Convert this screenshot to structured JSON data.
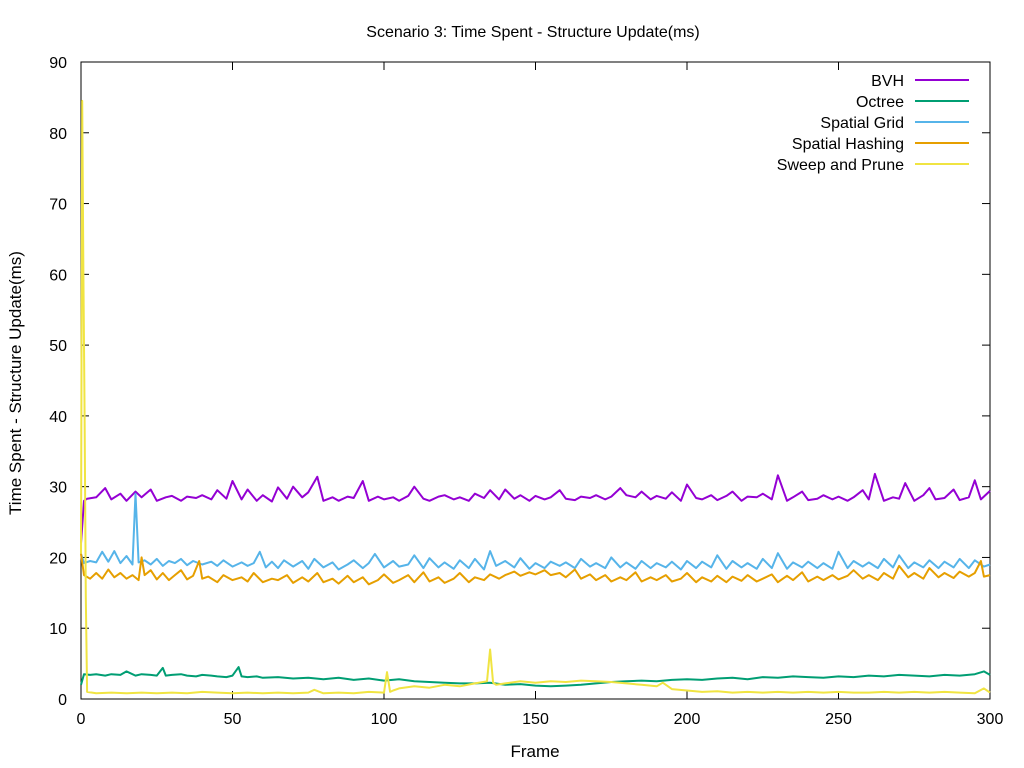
{
  "chart_data": {
    "type": "line",
    "title": "Scenario 3: Time Spent - Structure Update(ms)",
    "xlabel": "Frame",
    "ylabel": "Time Spent - Structure Update(ms)",
    "xlim": [
      0,
      300
    ],
    "ylim": [
      0,
      90
    ],
    "xticks": [
      0,
      50,
      100,
      150,
      200,
      250,
      300
    ],
    "yticks": [
      0,
      10,
      20,
      30,
      40,
      50,
      60,
      70,
      80,
      90
    ],
    "grid": false,
    "legend_position": "top-right",
    "series": [
      {
        "name": "BVH",
        "color": "#9400d3",
        "x": [
          0,
          1,
          2,
          5,
          8,
          10,
          13,
          15,
          18,
          20,
          23,
          25,
          28,
          30,
          33,
          35,
          38,
          40,
          43,
          45,
          48,
          50,
          53,
          55,
          58,
          60,
          63,
          65,
          68,
          70,
          73,
          75,
          78,
          80,
          83,
          85,
          88,
          90,
          93,
          95,
          98,
          100,
          103,
          105,
          108,
          110,
          113,
          115,
          118,
          120,
          123,
          125,
          128,
          130,
          133,
          135,
          138,
          140,
          143,
          145,
          148,
          150,
          153,
          155,
          158,
          160,
          163,
          165,
          168,
          170,
          173,
          175,
          178,
          180,
          183,
          185,
          188,
          190,
          193,
          195,
          198,
          200,
          203,
          205,
          208,
          210,
          213,
          215,
          218,
          220,
          223,
          225,
          228,
          230,
          233,
          235,
          238,
          240,
          243,
          245,
          248,
          250,
          253,
          255,
          258,
          260,
          262,
          265,
          268,
          270,
          272,
          275,
          278,
          280,
          282,
          285,
          288,
          290,
          293,
          295,
          297,
          300
        ],
        "y": [
          22.0,
          28.0,
          28.3,
          28.5,
          29.8,
          28.2,
          29.0,
          28.0,
          29.3,
          28.5,
          29.6,
          28.0,
          28.5,
          28.7,
          28.0,
          28.6,
          28.4,
          28.8,
          28.2,
          29.5,
          28.3,
          30.8,
          28.2,
          29.6,
          28.0,
          28.8,
          27.9,
          29.9,
          28.3,
          30.0,
          28.5,
          29.2,
          31.4,
          28.0,
          28.5,
          28.0,
          28.6,
          28.4,
          30.8,
          28.0,
          28.6,
          28.2,
          28.5,
          28.0,
          28.7,
          30.0,
          28.3,
          28.0,
          28.6,
          28.8,
          28.2,
          28.5,
          28.0,
          29.0,
          28.4,
          29.5,
          28.2,
          29.6,
          28.3,
          28.8,
          28.0,
          28.7,
          28.2,
          28.5,
          29.5,
          28.3,
          28.1,
          28.6,
          28.4,
          28.8,
          28.2,
          28.6,
          29.8,
          28.8,
          28.5,
          29.3,
          28.2,
          28.7,
          28.3,
          29.2,
          28.0,
          30.3,
          28.4,
          28.2,
          28.8,
          28.1,
          28.7,
          29.3,
          28.0,
          28.6,
          28.5,
          29.0,
          28.2,
          31.6,
          28.0,
          28.5,
          29.3,
          28.1,
          28.3,
          28.8,
          28.2,
          28.6,
          28.0,
          28.5,
          29.5,
          28.2,
          31.8,
          28.0,
          28.5,
          28.3,
          30.5,
          28.0,
          28.8,
          29.8,
          28.2,
          28.4,
          29.6,
          28.1,
          28.5,
          30.9,
          28.2,
          29.4
        ]
      },
      {
        "name": "Octree",
        "color": "#009e73",
        "x": [
          0,
          1,
          3,
          5,
          8,
          10,
          13,
          15,
          18,
          20,
          23,
          25,
          27,
          28,
          30,
          33,
          35,
          38,
          40,
          43,
          45,
          48,
          50,
          52,
          53,
          55,
          58,
          60,
          65,
          70,
          75,
          80,
          85,
          90,
          95,
          100,
          105,
          110,
          115,
          120,
          125,
          130,
          135,
          140,
          145,
          150,
          155,
          160,
          165,
          170,
          175,
          180,
          185,
          190,
          195,
          200,
          205,
          210,
          215,
          220,
          225,
          230,
          235,
          240,
          245,
          250,
          255,
          260,
          265,
          270,
          275,
          280,
          285,
          290,
          295,
          298,
          300
        ],
        "y": [
          2.0,
          3.5,
          3.4,
          3.5,
          3.3,
          3.5,
          3.4,
          3.9,
          3.3,
          3.5,
          3.4,
          3.3,
          4.4,
          3.3,
          3.4,
          3.5,
          3.3,
          3.2,
          3.4,
          3.3,
          3.2,
          3.1,
          3.3,
          4.5,
          3.2,
          3.1,
          3.2,
          3.0,
          3.1,
          2.9,
          3.0,
          2.8,
          3.0,
          2.7,
          2.9,
          2.6,
          2.8,
          2.5,
          2.4,
          2.3,
          2.2,
          2.2,
          2.3,
          2.0,
          2.1,
          1.9,
          1.8,
          1.9,
          2.0,
          2.2,
          2.4,
          2.5,
          2.6,
          2.5,
          2.7,
          2.8,
          2.7,
          2.9,
          3.0,
          2.8,
          3.1,
          3.0,
          3.2,
          3.1,
          3.0,
          3.2,
          3.1,
          3.3,
          3.2,
          3.4,
          3.3,
          3.2,
          3.4,
          3.3,
          3.5,
          3.9,
          3.4
        ]
      },
      {
        "name": "Spatial Grid",
        "color": "#56b4e9",
        "x": [
          0,
          1,
          3,
          5,
          7,
          9,
          11,
          13,
          15,
          17,
          18,
          19,
          21,
          23,
          25,
          27,
          29,
          31,
          33,
          35,
          37,
          40,
          43,
          45,
          47,
          50,
          53,
          55,
          57,
          59,
          61,
          63,
          65,
          67,
          70,
          73,
          75,
          77,
          80,
          83,
          85,
          88,
          90,
          93,
          95,
          97,
          100,
          103,
          105,
          108,
          110,
          113,
          115,
          118,
          120,
          123,
          125,
          128,
          130,
          133,
          135,
          137,
          140,
          143,
          145,
          148,
          150,
          153,
          155,
          158,
          160,
          163,
          165,
          168,
          170,
          173,
          175,
          178,
          180,
          183,
          185,
          188,
          190,
          193,
          195,
          198,
          200,
          203,
          205,
          208,
          210,
          213,
          215,
          218,
          220,
          223,
          225,
          228,
          230,
          233,
          235,
          238,
          240,
          243,
          245,
          248,
          250,
          253,
          255,
          258,
          260,
          263,
          265,
          268,
          270,
          273,
          275,
          278,
          280,
          283,
          285,
          288,
          290,
          293,
          295,
          298,
          300
        ],
        "y": [
          20.5,
          19.2,
          19.5,
          19.3,
          20.8,
          19.4,
          20.9,
          19.2,
          20.2,
          19.0,
          29.0,
          19.3,
          19.6,
          19.0,
          19.8,
          18.8,
          19.5,
          19.2,
          19.8,
          18.9,
          19.5,
          19.0,
          19.4,
          18.8,
          19.6,
          18.7,
          19.3,
          18.8,
          19.2,
          20.8,
          18.6,
          19.4,
          18.5,
          19.6,
          18.7,
          19.5,
          18.4,
          19.8,
          18.6,
          19.3,
          18.3,
          19.0,
          19.6,
          18.5,
          19.2,
          20.5,
          18.6,
          19.5,
          18.7,
          19.0,
          20.3,
          18.5,
          19.9,
          18.6,
          19.3,
          18.4,
          19.6,
          18.5,
          19.8,
          18.3,
          20.9,
          18.8,
          19.5,
          18.6,
          19.9,
          18.4,
          19.2,
          18.5,
          19.4,
          18.8,
          19.3,
          18.5,
          19.8,
          18.7,
          19.2,
          18.5,
          20.0,
          18.6,
          19.3,
          18.4,
          19.5,
          18.5,
          19.2,
          18.6,
          19.4,
          18.3,
          19.5,
          18.5,
          19.4,
          18.6,
          20.3,
          18.4,
          19.5,
          18.6,
          19.2,
          18.4,
          19.8,
          18.5,
          20.6,
          18.4,
          19.3,
          18.6,
          19.4,
          18.5,
          19.2,
          18.4,
          20.8,
          18.5,
          19.5,
          18.7,
          19.3,
          18.5,
          19.8,
          18.6,
          20.3,
          18.5,
          19.3,
          18.6,
          19.6,
          18.5,
          19.4,
          18.6,
          19.8,
          18.5,
          19.6,
          18.7,
          19.0
        ]
      },
      {
        "name": "Spatial Hashing",
        "color": "#e69f00",
        "x": [
          0,
          1,
          3,
          5,
          7,
          9,
          11,
          13,
          15,
          17,
          19,
          20,
          21,
          23,
          25,
          27,
          29,
          31,
          33,
          35,
          37,
          39,
          40,
          42,
          45,
          47,
          50,
          53,
          55,
          57,
          60,
          63,
          65,
          68,
          70,
          73,
          75,
          78,
          80,
          83,
          85,
          88,
          90,
          93,
          95,
          98,
          100,
          103,
          105,
          108,
          110,
          113,
          115,
          118,
          120,
          123,
          125,
          128,
          130,
          133,
          135,
          138,
          140,
          143,
          145,
          148,
          150,
          153,
          155,
          158,
          160,
          163,
          165,
          168,
          170,
          173,
          175,
          178,
          180,
          183,
          185,
          188,
          190,
          193,
          195,
          198,
          200,
          203,
          205,
          208,
          210,
          213,
          215,
          218,
          220,
          223,
          225,
          228,
          230,
          233,
          235,
          238,
          240,
          243,
          245,
          248,
          250,
          253,
          255,
          258,
          260,
          263,
          265,
          268,
          270,
          273,
          275,
          278,
          280,
          283,
          285,
          288,
          290,
          293,
          295,
          297,
          298,
          300
        ],
        "y": [
          20.5,
          17.5,
          17.0,
          17.8,
          17.0,
          18.3,
          17.2,
          17.8,
          17.0,
          17.5,
          16.8,
          20.0,
          17.5,
          18.2,
          16.9,
          17.8,
          16.8,
          17.5,
          18.2,
          16.9,
          17.4,
          19.5,
          17.0,
          17.3,
          16.5,
          17.5,
          16.8,
          17.2,
          16.6,
          17.8,
          16.5,
          17.0,
          16.8,
          17.5,
          16.4,
          17.2,
          16.6,
          17.8,
          16.5,
          17.0,
          16.3,
          17.4,
          16.5,
          17.2,
          16.2,
          16.8,
          17.6,
          16.4,
          16.8,
          17.5,
          16.5,
          17.9,
          16.6,
          17.2,
          16.4,
          17.0,
          17.8,
          16.5,
          17.2,
          16.8,
          17.6,
          17.0,
          17.5,
          18.0,
          17.4,
          17.9,
          17.6,
          18.2,
          17.5,
          17.8,
          17.2,
          18.3,
          17.0,
          17.6,
          16.8,
          17.5,
          16.6,
          17.2,
          16.8,
          17.9,
          16.6,
          17.2,
          16.8,
          17.5,
          16.6,
          17.0,
          17.8,
          16.5,
          17.2,
          16.6,
          17.4,
          16.5,
          17.3,
          16.7,
          17.5,
          16.6,
          17.0,
          17.6,
          16.5,
          17.4,
          16.8,
          17.9,
          16.6,
          17.3,
          16.8,
          17.5,
          16.9,
          17.4,
          18.2,
          17.0,
          17.5,
          16.8,
          17.8,
          17.0,
          18.8,
          17.2,
          17.8,
          17.0,
          18.5,
          17.2,
          17.8,
          17.1,
          18.0,
          17.3,
          17.8,
          19.5,
          17.3,
          17.5
        ]
      },
      {
        "name": "Sweep and Prune",
        "color": "#f0e442",
        "x": [
          0,
          0.4,
          0.8,
          1.2,
          1.6,
          2,
          5,
          10,
          15,
          20,
          25,
          30,
          35,
          40,
          45,
          50,
          55,
          60,
          65,
          70,
          75,
          77,
          80,
          85,
          90,
          95,
          100,
          101,
          102,
          103,
          105,
          110,
          115,
          120,
          125,
          130,
          134,
          135,
          136,
          137,
          140,
          145,
          150,
          155,
          160,
          165,
          170,
          175,
          180,
          185,
          190,
          192,
          195,
          200,
          205,
          210,
          215,
          220,
          225,
          230,
          235,
          240,
          245,
          250,
          255,
          260,
          265,
          270,
          275,
          280,
          285,
          290,
          295,
          298,
          300
        ],
        "y": [
          20.5,
          84.5,
          60.0,
          40.0,
          14.5,
          1.0,
          0.8,
          0.9,
          0.8,
          0.9,
          0.8,
          0.9,
          0.8,
          1.0,
          0.9,
          0.8,
          0.9,
          0.8,
          0.9,
          0.8,
          0.9,
          1.3,
          0.8,
          0.9,
          0.8,
          1.0,
          0.9,
          3.8,
          1.0,
          1.2,
          1.5,
          1.8,
          1.6,
          2.0,
          1.8,
          2.2,
          2.5,
          7.0,
          2.3,
          2.0,
          2.2,
          2.5,
          2.3,
          2.5,
          2.4,
          2.6,
          2.5,
          2.4,
          2.2,
          2.0,
          1.8,
          2.3,
          1.4,
          1.2,
          1.0,
          1.1,
          0.9,
          1.0,
          0.9,
          1.0,
          0.9,
          1.0,
          0.9,
          1.0,
          0.9,
          0.9,
          1.0,
          0.9,
          1.0,
          0.9,
          1.0,
          0.9,
          0.8,
          1.5,
          0.9
        ]
      }
    ]
  }
}
